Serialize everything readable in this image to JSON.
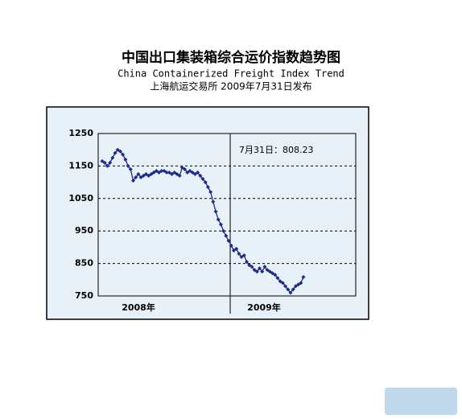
{
  "chart_data": {
    "type": "line",
    "title": "中国出口集装箱综合运价指数趋势图",
    "subtitle": "China Containerized Freight Index Trend",
    "source": "上海航运交易所  2009年7月31日发布",
    "annotation": "7月31日：808.23",
    "period_labels": [
      "2008年",
      "2009年"
    ],
    "color": "#1f2b8c",
    "values": [
      1165,
      1160,
      1150,
      1160,
      1175,
      1190,
      1200,
      1195,
      1185,
      1170,
      1150,
      1140,
      1105,
      1115,
      1125,
      1115,
      1120,
      1125,
      1120,
      1125,
      1130,
      1135,
      1130,
      1135,
      1135,
      1130,
      1130,
      1125,
      1130,
      1125,
      1120,
      1145,
      1140,
      1130,
      1135,
      1130,
      1125,
      1130,
      1120,
      1110,
      1100,
      1085,
      1070,
      1040,
      1010,
      985,
      970,
      950,
      935,
      920,
      905,
      890,
      895,
      880,
      870,
      875,
      855,
      845,
      840,
      830,
      825,
      835,
      825,
      840,
      830,
      825,
      820,
      815,
      805,
      795,
      790,
      780,
      770,
      760,
      770,
      780,
      785,
      790,
      808.23
    ],
    "ylim": [
      750,
      1250
    ],
    "yticks": [
      750,
      850,
      950,
      1050,
      1150,
      1250
    ],
    "grid": true
  }
}
